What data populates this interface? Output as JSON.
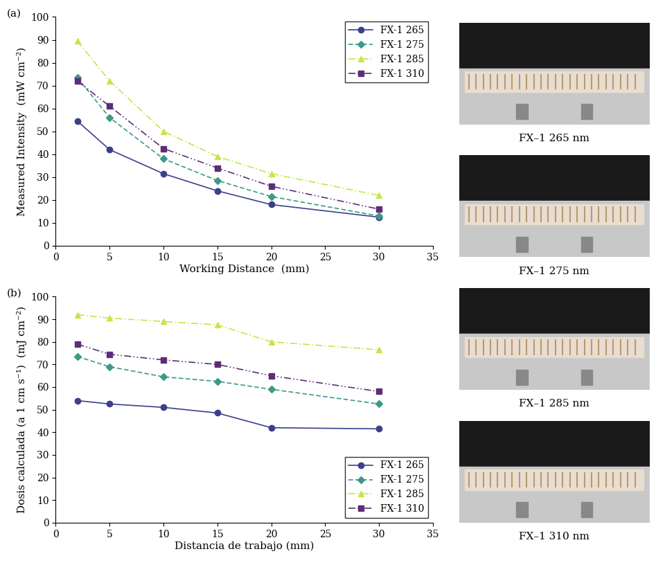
{
  "chart_data": [
    {
      "type": "line",
      "annotations": [
        "(a)"
      ],
      "x_label": "Working Distance  (mm)",
      "y_label": "Measured Intensity  (mW cm⁻²)",
      "x": [
        2,
        5,
        10,
        15,
        20,
        30
      ],
      "series": [
        {
          "name": "FX-1 265",
          "color": "#3b3f8c",
          "marker": "circle",
          "line_style": "solid",
          "values": [
            54.5,
            42,
            31.5,
            24,
            18,
            12.5
          ]
        },
        {
          "name": "FX-1 275",
          "color": "#3a9a85",
          "marker": "diamond",
          "line_style": "dashed",
          "values": [
            73.5,
            56,
            38,
            28.5,
            21.5,
            13
          ]
        },
        {
          "name": "FX-1 285",
          "color": "#c5e64a",
          "marker": "triangle",
          "line_style": "dashdot",
          "values": [
            89.5,
            72,
            50,
            39,
            31.5,
            22
          ]
        },
        {
          "name": "FX-1 310",
          "color": "#5e2d79",
          "marker": "square",
          "line_style": "dashdotdot",
          "values": [
            72,
            61,
            42.5,
            34,
            26,
            16
          ]
        }
      ],
      "xlim": [
        0,
        35
      ],
      "xticks": [
        0,
        5,
        10,
        15,
        20,
        25,
        30,
        35
      ],
      "ylim": [
        0,
        100
      ],
      "yticks": [
        0,
        10,
        20,
        30,
        40,
        50,
        60,
        70,
        80,
        90,
        100
      ],
      "grid": false,
      "legend": "upper right"
    },
    {
      "type": "line",
      "annotations": [
        "(b)"
      ],
      "x_label": "Distancia de trabajo (mm)",
      "y_label": "Dosis calculada (a 1 cm s⁻¹)  (mJ cm⁻²)",
      "x": [
        2,
        5,
        10,
        15,
        20,
        30
      ],
      "series": [
        {
          "name": "FX-1 265",
          "color": "#3b3f8c",
          "marker": "circle",
          "line_style": "solid",
          "values": [
            54,
            52.5,
            51,
            48.5,
            42,
            41.5
          ]
        },
        {
          "name": "FX-1 275",
          "color": "#3a9a85",
          "marker": "diamond",
          "line_style": "dashed",
          "values": [
            73.5,
            69,
            64.5,
            62.5,
            59,
            52.5
          ]
        },
        {
          "name": "FX-1 285",
          "color": "#c5e64a",
          "marker": "triangle",
          "line_style": "dashdot",
          "values": [
            92,
            90.5,
            89,
            87.5,
            80,
            76.5
          ]
        },
        {
          "name": "FX-1 310",
          "color": "#5e2d79",
          "marker": "square",
          "line_style": "dashdotdot",
          "values": [
            79,
            74.5,
            72,
            70,
            65,
            58
          ]
        }
      ],
      "xlim": [
        0,
        35
      ],
      "xticks": [
        0,
        5,
        10,
        15,
        20,
        25,
        30,
        35
      ],
      "ylim": [
        0,
        100
      ],
      "yticks": [
        0,
        10,
        20,
        30,
        40,
        50,
        60,
        70,
        80,
        90,
        100
      ],
      "grid": false,
      "legend": "lower right"
    }
  ],
  "image_captions": [
    "FX–1 265 nm",
    "FX–1 275 nm",
    "FX–1 285 nm",
    "FX–1 310 nm"
  ]
}
